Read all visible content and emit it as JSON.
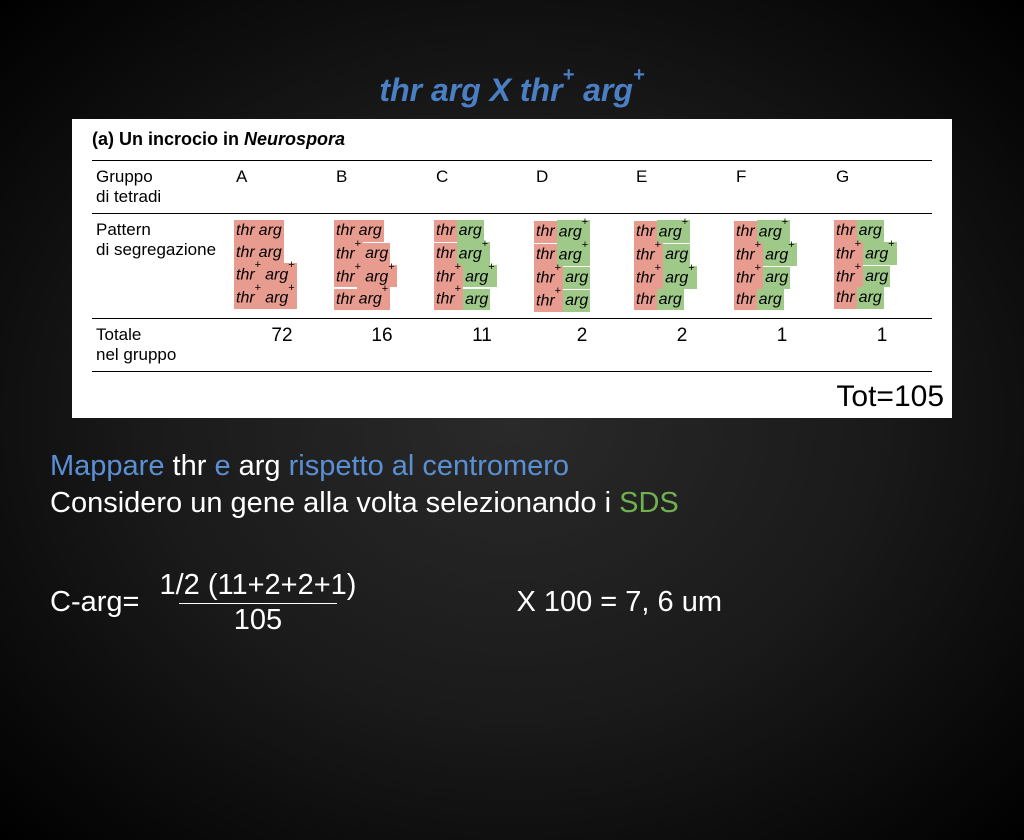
{
  "title_html": "thr arg X thr⁺ arg⁺",
  "figure": {
    "label_a": "(a)",
    "label_text": "Un incrocio in",
    "label_ital": "Neurospora",
    "row_headers": {
      "group": "Gruppo di tetradi",
      "pattern": "Pattern di segregazione",
      "total": "Totale nel gruppo"
    },
    "columns": [
      "A",
      "B",
      "C",
      "D",
      "E",
      "F",
      "G"
    ],
    "patterns": [
      [
        [
          "thr",
          "arg"
        ],
        [
          "thr",
          "arg"
        ],
        [
          "thr⁺",
          "arg⁺"
        ],
        [
          "thr⁺",
          "arg⁺"
        ]
      ],
      [
        [
          "thr",
          "arg"
        ],
        [
          "thr⁺",
          "arg"
        ],
        [
          "thr⁺",
          "arg⁺"
        ],
        [
          "thr",
          "arg⁺"
        ]
      ],
      [
        [
          "thr",
          "arg"
        ],
        [
          "thr",
          "arg⁺"
        ],
        [
          "thr⁺",
          "arg⁺"
        ],
        [
          "thr⁺",
          "arg"
        ]
      ],
      [
        [
          "thr",
          "arg⁺"
        ],
        [
          "thr",
          "arg⁺"
        ],
        [
          "thr⁺",
          "arg"
        ],
        [
          "thr⁺",
          "arg"
        ]
      ],
      [
        [
          "thr",
          "arg⁺"
        ],
        [
          "thr⁺",
          "arg"
        ],
        [
          "thr⁺",
          "arg⁺"
        ],
        [
          "thr",
          "arg"
        ]
      ],
      [
        [
          "thr",
          "arg⁺"
        ],
        [
          "thr⁺",
          "arg⁺"
        ],
        [
          "thr⁺",
          "arg"
        ],
        [
          "thr",
          "arg"
        ]
      ],
      [
        [
          "thr",
          "arg"
        ],
        [
          "thr⁺",
          "arg⁺"
        ],
        [
          "thr⁺",
          "arg"
        ],
        [
          "thr",
          "arg"
        ]
      ]
    ],
    "thr_highlights": [
      "red",
      "red",
      "red",
      "red",
      "red",
      "red",
      "red"
    ],
    "arg_highlights": [
      "red",
      "red",
      "green",
      "green",
      "green",
      "green",
      "green"
    ],
    "totals": [
      72,
      16,
      11,
      2,
      2,
      1,
      1
    ],
    "grand_total_label": "Tot=105"
  },
  "body": {
    "line1_pre": "Mappare",
    "line1_mid1": " thr ",
    "line1_e": "e",
    "line1_mid2": " arg ",
    "line1_post": "rispetto al centromero",
    "line2_pre": "Considero un gene alla volta selezionando i ",
    "line2_sds": "SDS"
  },
  "formula": {
    "lhs": "C-arg=",
    "numerator": "1/2 (11+2+2+1)",
    "denominator": "105",
    "rhs": "X 100 = 7, 6 um"
  },
  "colors": {
    "title": "#4a7fc4",
    "hl_red": "#e89b8f",
    "hl_green": "#9ec989",
    "blue_text": "#5a8fd4",
    "green_text": "#6fb04f",
    "bg_dark": "#000000",
    "white": "#ffffff"
  }
}
